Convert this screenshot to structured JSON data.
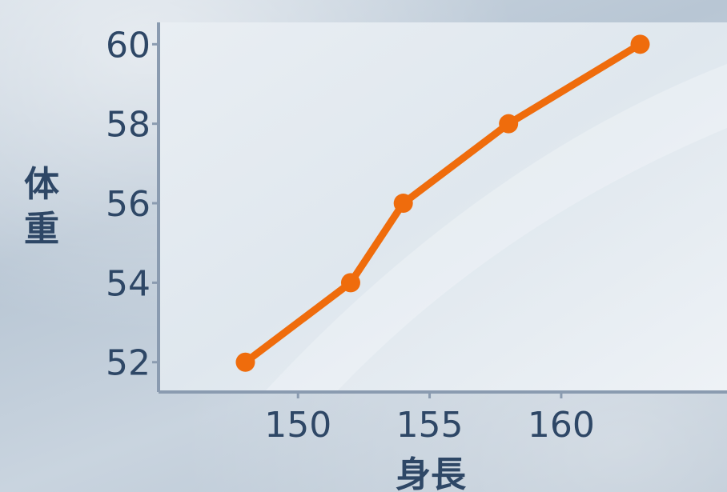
{
  "chart_data": {
    "type": "line",
    "title": "",
    "xlabel": "身長",
    "ylabel": "体重",
    "x": [
      148,
      152,
      154,
      158,
      163
    ],
    "series": [
      {
        "values": [
          52,
          54,
          56,
          58,
          60
        ],
        "color": "#ef6c0c"
      }
    ],
    "xlim": [
      144.7,
      166.3
    ],
    "ylim": [
      51.25,
      60.55
    ],
    "xticks": [
      150,
      155,
      160
    ],
    "yticks": [
      52,
      54,
      56,
      58,
      60
    ],
    "grid": false,
    "legend": "none",
    "colors": {
      "line": "#ef6c0c",
      "text": "#2e4766",
      "plot_bg": "#eaf0f5"
    }
  }
}
